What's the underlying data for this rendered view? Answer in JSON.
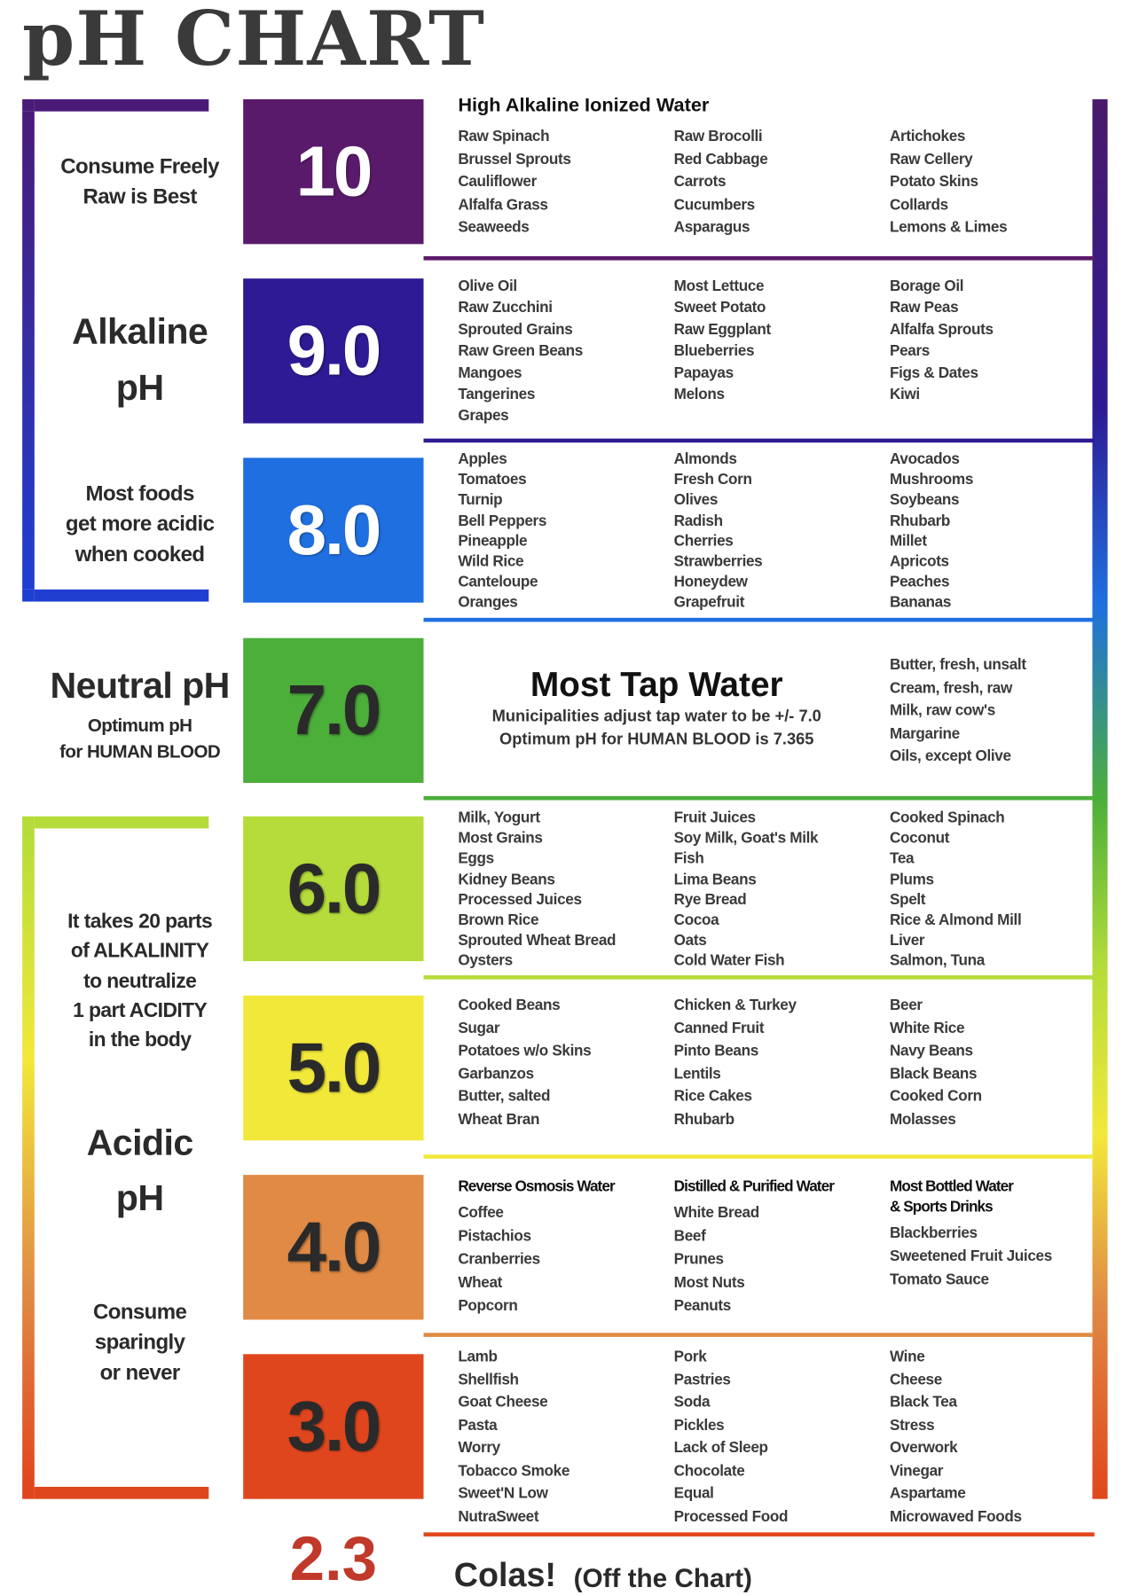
{
  "title": "pH CHART",
  "side_labels": [
    [
      "Consume Freely",
      "Raw is Best"
    ],
    [
      "Alkaline",
      "pH"
    ],
    [
      "Most foods",
      "get more acidic",
      "when cooked"
    ],
    [
      "Neutral pH"
    ],
    [
      "Optimum pH",
      "for HUMAN BLOOD"
    ],
    [
      "It takes 20 parts",
      "of ALKALINITY",
      "to neutralize",
      "1 part ACIDITY",
      "in the body"
    ],
    [
      "Acidic",
      "pH"
    ],
    [
      "Consume",
      "sparingly",
      "or never"
    ]
  ],
  "levels": [
    {
      "ph": "10",
      "color": "#5a1a6b",
      "text_color": "#ffffff",
      "header": "High Alkaline Ionized Water",
      "columns": [
        {
          "items": [
            "Raw Spinach",
            "Brussel Sprouts",
            "Cauliflower",
            "Alfalfa Grass",
            "Seaweeds"
          ]
        },
        {
          "items": [
            "Raw Brocolli",
            "Red Cabbage",
            "Carrots",
            "Cucumbers",
            "Asparagus"
          ]
        },
        {
          "items": [
            "Artichokes",
            "Raw Cellery",
            "Potato Skins",
            "Collards",
            "Lemons & Limes"
          ]
        }
      ]
    },
    {
      "ph": "9.0",
      "color": "#2e1a94",
      "text_color": "#ffffff",
      "columns": [
        {
          "items": [
            "Olive Oil",
            "Raw Zucchini",
            "Sprouted Grains",
            "Raw Green Beans",
            "Mangoes",
            "Tangerines",
            "Grapes"
          ]
        },
        {
          "items": [
            "Most Lettuce",
            "Sweet Potato",
            "Raw Eggplant",
            "Blueberries",
            "Papayas",
            "Melons"
          ]
        },
        {
          "items": [
            "Borage Oil",
            "Raw Peas",
            "Alfalfa Sprouts",
            "Pears",
            "Figs & Dates",
            "Kiwi"
          ]
        }
      ]
    },
    {
      "ph": "8.0",
      "color": "#1f6fe0",
      "text_color": "#ffffff",
      "columns": [
        {
          "items": [
            "Apples",
            "Tomatoes",
            "Turnip",
            "Bell Peppers",
            "Pineapple",
            "Wild Rice",
            "Canteloupe",
            "Oranges"
          ]
        },
        {
          "items": [
            "Almonds",
            "Fresh Corn",
            "Olives",
            "Radish",
            "Cherries",
            "Strawberries",
            "Honeydew",
            "Grapefruit"
          ]
        },
        {
          "items": [
            "Avocados",
            "Mushrooms",
            "Soybeans",
            "Rhubarb",
            "Millet",
            "Apricots",
            "Peaches",
            "Bananas"
          ]
        }
      ]
    },
    {
      "ph": "7.0",
      "color": "#4caf3a",
      "text_color": "#2a2a2a",
      "feature": {
        "title": "Most Tap Water",
        "lines": [
          "Municipalities adjust tap water to be +/- 7.0",
          "Optimum pH for HUMAN BLOOD is 7.365"
        ]
      },
      "columns": [
        {
          "items": [
            "Butter, fresh, unsalt",
            "Cream, fresh, raw",
            "Milk, raw cow's",
            "Margarine",
            "Oils, except Olive"
          ]
        }
      ]
    },
    {
      "ph": "6.0",
      "color": "#b5dc3a",
      "text_color": "#2a2a2a",
      "columns": [
        {
          "items": [
            "Milk, Yogurt",
            "Most Grains",
            "Eggs",
            "Kidney Beans",
            "Processed Juices",
            "Brown Rice",
            "Sprouted Wheat Bread",
            "Oysters"
          ]
        },
        {
          "items": [
            "Fruit Juices",
            "Soy Milk, Goat's Milk",
            "Fish",
            "Lima Beans",
            "Rye Bread",
            "Cocoa",
            "Oats",
            "Cold Water Fish"
          ]
        },
        {
          "items": [
            "Cooked Spinach",
            "Coconut",
            "Tea",
            "Plums",
            "Spelt",
            "Rice & Almond Mill",
            "Liver",
            "Salmon, Tuna"
          ]
        }
      ]
    },
    {
      "ph": "5.0",
      "color": "#f2e83a",
      "text_color": "#2a2a2a",
      "columns": [
        {
          "items": [
            "Cooked Beans",
            "Sugar",
            "Potatoes w/o Skins",
            "Garbanzos",
            "Butter, salted",
            "Wheat Bran"
          ]
        },
        {
          "items": [
            "Chicken & Turkey",
            "Canned Fruit",
            "Pinto Beans",
            "Lentils",
            "Rice Cakes",
            "Rhubarb"
          ]
        },
        {
          "items": [
            "Beer",
            "White Rice",
            "Navy Beans",
            "Black Beans",
            "Cooked Corn",
            "Molasses"
          ]
        }
      ]
    },
    {
      "ph": "4.0",
      "color": "#e08a45",
      "text_color": "#2a2a2a",
      "columns": [
        {
          "header": [
            "Reverse Osmosis Water"
          ],
          "items": [
            "Coffee",
            "Pistachios",
            "Cranberries",
            "Wheat",
            "Popcorn"
          ]
        },
        {
          "header": [
            "Distilled & Purified Water"
          ],
          "items": [
            "White Bread",
            "Beef",
            "Prunes",
            "Most Nuts",
            "Peanuts"
          ]
        },
        {
          "header": [
            "Most Bottled Water",
            "& Sports Drinks"
          ],
          "items": [
            "Blackberries",
            "Sweetened Fruit Juices",
            "Tomato Sauce"
          ]
        }
      ]
    },
    {
      "ph": "3.0",
      "color": "#e0461e",
      "text_color": "#2a2a2a",
      "columns": [
        {
          "items": [
            "Lamb",
            "Shellfish",
            "Goat Cheese",
            "Pasta",
            "Worry",
            "Tobacco Smoke",
            "Sweet'N Low",
            "NutraSweet"
          ]
        },
        {
          "items": [
            "Pork",
            "Pastries",
            "Soda",
            "Pickles",
            "Lack of Sleep",
            "Chocolate",
            "Equal",
            "Processed Food"
          ]
        },
        {
          "items": [
            "Wine",
            "Cheese",
            "Black Tea",
            "Stress",
            "Overwork",
            "Vinegar",
            "Aspartame",
            "Microwaved Foods"
          ]
        }
      ]
    }
  ],
  "off_chart": {
    "ph": "2.3",
    "color": "#c0392b",
    "title": "Colas!",
    "note": "(Off the Chart)"
  }
}
